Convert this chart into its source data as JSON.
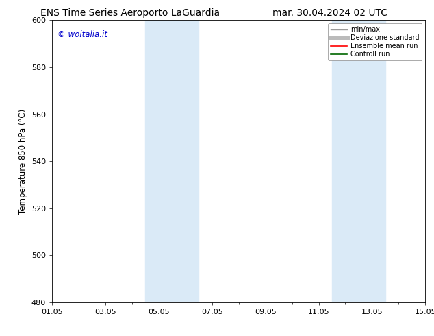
{
  "title_left": "ENS Time Series Aeroporto LaGuardia",
  "title_right": "mar. 30.04.2024 02 UTC",
  "ylabel": "Temperature 850 hPa (°C)",
  "ylim": [
    480,
    600
  ],
  "yticks": [
    480,
    500,
    520,
    540,
    560,
    580,
    600
  ],
  "xtick_labels": [
    "01.05",
    "03.05",
    "05.05",
    "07.05",
    "09.05",
    "11.05",
    "13.05",
    "15.05"
  ],
  "xtick_positions": [
    0,
    2,
    4,
    6,
    8,
    10,
    12,
    14
  ],
  "xlim_start": 0,
  "xlim_end": 14,
  "shaded_bands": [
    {
      "x_start": 3.5,
      "x_end": 5.5
    },
    {
      "x_start": 10.5,
      "x_end": 12.5
    }
  ],
  "shaded_color": "#daeaf7",
  "background_color": "#ffffff",
  "plot_bg_color": "#ffffff",
  "watermark_text": "© woitalia.it",
  "watermark_color": "#0000cc",
  "legend_entries": [
    {
      "label": "min/max",
      "color": "#999999",
      "lw": 1.0,
      "linestyle": "-"
    },
    {
      "label": "Deviazione standard",
      "color": "#bbbbbb",
      "lw": 5,
      "linestyle": "-"
    },
    {
      "label": "Ensemble mean run",
      "color": "#ff0000",
      "lw": 1.2,
      "linestyle": "-"
    },
    {
      "label": "Controll run",
      "color": "#006600",
      "lw": 1.2,
      "linestyle": "-"
    }
  ],
  "title_fontsize": 10,
  "tick_fontsize": 8,
  "ylabel_fontsize": 8.5,
  "watermark_fontsize": 8.5,
  "legend_fontsize": 7
}
